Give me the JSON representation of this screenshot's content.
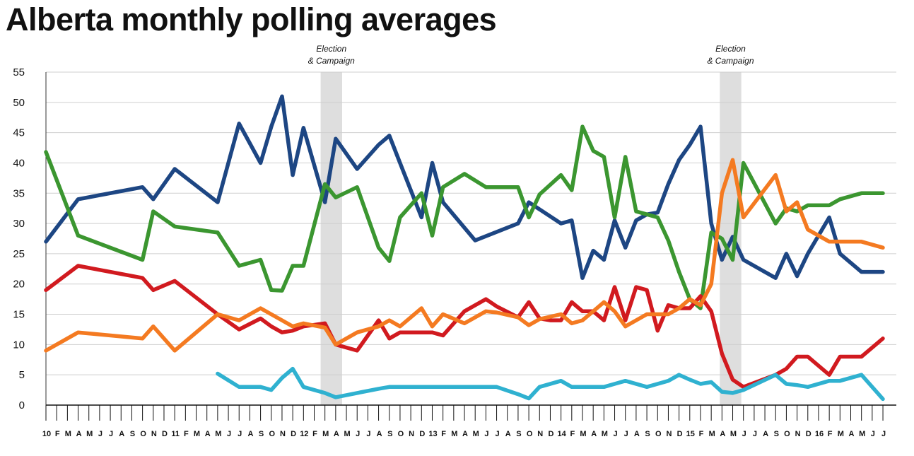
{
  "chart_data": {
    "type": "line",
    "title": "Alberta monthly polling averages",
    "xlabel": "",
    "ylabel": "",
    "ylim": [
      0,
      55
    ],
    "yticks": [
      0,
      5,
      10,
      15,
      20,
      25,
      30,
      35,
      40,
      45,
      50,
      55
    ],
    "x_tick_labels": [
      "10",
      "F",
      "M",
      "A",
      "M",
      "J",
      "J",
      "A",
      "S",
      "O",
      "N",
      "D",
      "11",
      "F",
      "M",
      "A",
      "M",
      "J",
      "J",
      "A",
      "S",
      "O",
      "N",
      "D",
      "12",
      "F",
      "M",
      "A",
      "M",
      "J",
      "J",
      "A",
      "S",
      "O",
      "N",
      "D",
      "13",
      "F",
      "M",
      "A",
      "M",
      "J",
      "J",
      "A",
      "S",
      "O",
      "N",
      "D",
      "14",
      "F",
      "M",
      "A",
      "M",
      "J",
      "J",
      "A",
      "S",
      "O",
      "N",
      "D",
      "15",
      "F",
      "M",
      "A",
      "M",
      "J",
      "J",
      "A",
      "S",
      "O",
      "N",
      "D",
      "16",
      "F",
      "M",
      "A",
      "M",
      "J",
      "J"
    ],
    "shaded_periods": [
      {
        "label": "Election & Campaign",
        "label_lines": [
          "Election",
          "& Campaign"
        ],
        "start": 25.6,
        "end": 27.6
      },
      {
        "label": "Election & Campaign",
        "label_lines": [
          "Election",
          "& Campaign"
        ],
        "start": 62.8,
        "end": 64.8
      }
    ],
    "series": [
      {
        "name": "Dark blue",
        "color": "#1d4683",
        "x": [
          0,
          3,
          9,
          10,
          12,
          16,
          18,
          20,
          21,
          22,
          23,
          24,
          26,
          27,
          29,
          31,
          32,
          33,
          35,
          36,
          37,
          40,
          44,
          45,
          48,
          49,
          50,
          51,
          52,
          53,
          54,
          55,
          56,
          57,
          58,
          59,
          60,
          61,
          62,
          63,
          64,
          65,
          68,
          69,
          70,
          71,
          73,
          74,
          76,
          78
        ],
        "y": [
          27,
          34,
          36,
          34,
          39,
          33.5,
          46.5,
          40,
          46,
          51,
          38,
          45.8,
          33.5,
          44,
          39,
          43,
          44.5,
          40,
          31,
          40,
          33.5,
          27.2,
          30,
          33.5,
          30,
          30.5,
          21,
          25.5,
          24,
          30.5,
          26,
          30.5,
          31.5,
          31.8,
          36.5,
          40.5,
          43,
          46,
          30,
          24,
          27.8,
          24,
          21,
          25,
          21.3,
          25,
          31,
          25,
          22,
          22
        ]
      },
      {
        "name": "Green",
        "color": "#3b9630",
        "x": [
          0,
          3,
          9,
          10,
          12,
          16,
          18,
          20,
          21,
          22,
          23,
          24,
          26,
          27,
          29,
          31,
          32,
          33,
          35,
          36,
          37,
          39,
          41,
          44,
          45,
          46,
          48,
          49,
          50,
          51,
          52,
          53,
          54,
          55,
          56,
          57,
          58,
          59,
          60,
          61,
          62,
          63,
          64,
          65,
          68,
          69,
          70,
          71,
          73,
          74,
          76,
          78
        ],
        "y": [
          41.8,
          28,
          24,
          32,
          29.5,
          28.5,
          23,
          24,
          19,
          18.9,
          23,
          23,
          36.5,
          34.3,
          36,
          26,
          23.8,
          31,
          35,
          28,
          36,
          38.2,
          36,
          36,
          31,
          34.8,
          38,
          35.5,
          46,
          42,
          41,
          31,
          41,
          32,
          31.5,
          31,
          27.2,
          22,
          17.5,
          16,
          28.5,
          27.5,
          24,
          40,
          30,
          32.5,
          32,
          33,
          33,
          34,
          35,
          35
        ]
      },
      {
        "name": "Red",
        "color": "#d11a1f",
        "x": [
          0,
          3,
          9,
          10,
          12,
          16,
          18,
          20,
          21,
          22,
          23,
          24,
          26,
          27,
          29,
          31,
          32,
          33,
          35,
          36,
          37,
          39,
          41,
          42,
          44,
          45,
          46,
          47,
          48,
          49,
          50,
          51,
          52,
          53,
          54,
          55,
          56,
          57,
          58,
          59,
          60,
          61,
          62,
          63,
          64,
          65,
          68,
          69,
          70,
          71,
          73,
          74,
          76,
          78
        ],
        "y": [
          19,
          23,
          21,
          19,
          20.5,
          15,
          12.5,
          14.3,
          13,
          12,
          12.3,
          13,
          13.5,
          10,
          9,
          14,
          11,
          12,
          12,
          12,
          11.5,
          15.5,
          17.5,
          16.3,
          14.5,
          17,
          14.3,
          14,
          14,
          17,
          15.5,
          15.5,
          14,
          19.5,
          14,
          19.5,
          19,
          12.3,
          16.5,
          16,
          16,
          18,
          15.5,
          8.5,
          4.2,
          3,
          5,
          6,
          8,
          8,
          5,
          8,
          8,
          11
        ]
      },
      {
        "name": "Orange",
        "color": "#f47a21",
        "x": [
          0,
          3,
          9,
          10,
          12,
          16,
          18,
          20,
          22,
          23,
          24,
          26,
          27,
          29,
          31,
          32,
          33,
          35,
          36,
          37,
          39,
          41,
          42,
          44,
          45,
          46,
          48,
          49,
          50,
          51,
          52,
          53,
          54,
          56,
          57,
          58,
          59,
          60,
          61,
          62,
          63,
          64,
          65,
          68,
          69,
          70,
          71,
          73,
          74,
          76,
          78
        ],
        "y": [
          9,
          12,
          11,
          13,
          9,
          15,
          14,
          16,
          14,
          13,
          13.5,
          12.8,
          10,
          12,
          13,
          14,
          13,
          16,
          13,
          15,
          13.5,
          15.5,
          15.3,
          14.5,
          13.2,
          14.2,
          15,
          13.5,
          14,
          15.5,
          17,
          15.5,
          13,
          15,
          15,
          15,
          16,
          17.5,
          16.5,
          20,
          35,
          40.5,
          31,
          38,
          32,
          33.5,
          29,
          27,
          27,
          27,
          26
        ]
      },
      {
        "name": "Light blue",
        "color": "#2fb1d0",
        "x": [
          16,
          18,
          20,
          21,
          22,
          23,
          24,
          26,
          27,
          29,
          31,
          32,
          33,
          35,
          37,
          39,
          41,
          42,
          44,
          45,
          46,
          48,
          49,
          50,
          51,
          52,
          53,
          54,
          56,
          57,
          58,
          59,
          60,
          61,
          62,
          63,
          64,
          65,
          68,
          69,
          70,
          71,
          73,
          74,
          76,
          78
        ],
        "y": [
          5.2,
          3,
          3,
          2.5,
          4.5,
          6,
          3,
          2,
          1.3,
          2,
          2.7,
          3,
          3,
          3,
          3,
          3,
          3,
          3,
          1.8,
          1.1,
          3,
          4,
          3,
          3,
          3,
          3,
          3.5,
          4,
          3,
          3.5,
          4,
          5,
          4.2,
          3.5,
          3.8,
          2.2,
          2,
          2.5,
          5,
          3.5,
          3.3,
          3,
          4,
          4,
          5,
          1
        ]
      }
    ]
  }
}
